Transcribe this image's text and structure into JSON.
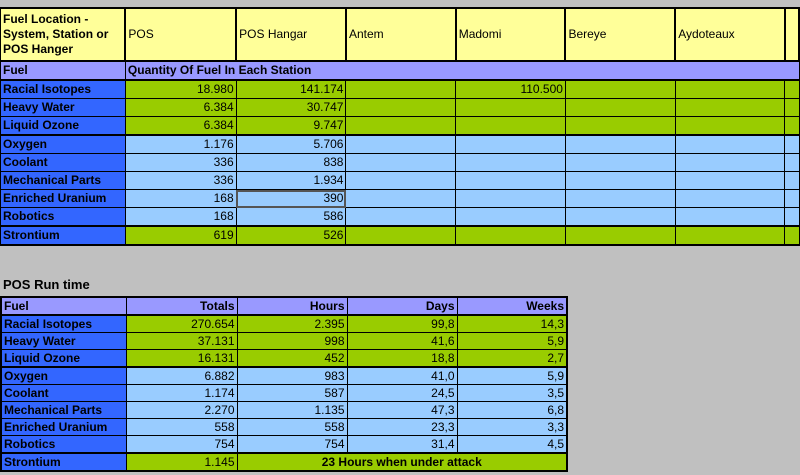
{
  "station_table": {
    "headers": [
      "Fuel Location - System, Station or POS Hanger",
      "POS",
      "POS Hangar",
      "Antem",
      "Madomi",
      "Bereye",
      "Aydoteaux",
      ""
    ],
    "subheader_label": "Fuel",
    "subheader_title": "Quantity Of Fuel In Each Station",
    "rows": [
      {
        "fuel": "Racial Isotopes",
        "group": "green",
        "values": [
          "18.980",
          "141.174",
          "",
          "110.500",
          "",
          "",
          ""
        ]
      },
      {
        "fuel": "Heavy Water",
        "group": "green",
        "values": [
          "6.384",
          "30.747",
          "",
          "",
          "",
          "",
          ""
        ]
      },
      {
        "fuel": "Liquid Ozone",
        "group": "green",
        "values": [
          "6.384",
          "9.747",
          "",
          "",
          "",
          "",
          ""
        ]
      },
      {
        "fuel": "Oxygen",
        "group": "blue",
        "values": [
          "1.176",
          "5.706",
          "",
          "",
          "",
          "",
          ""
        ]
      },
      {
        "fuel": "Coolant",
        "group": "blue",
        "values": [
          "336",
          "838",
          "",
          "",
          "",
          "",
          ""
        ]
      },
      {
        "fuel": "Mechanical Parts",
        "group": "blue",
        "values": [
          "336",
          "1.934",
          "",
          "",
          "",
          "",
          ""
        ]
      },
      {
        "fuel": "Enriched Uranium",
        "group": "blue",
        "values": [
          "168",
          "390",
          "",
          "",
          "",
          "",
          ""
        ]
      },
      {
        "fuel": "Robotics",
        "group": "blue",
        "values": [
          "168",
          "586",
          "",
          "",
          "",
          "",
          ""
        ]
      },
      {
        "fuel": "Strontium",
        "group": "green",
        "values": [
          "619",
          "526",
          "",
          "",
          "",
          "",
          ""
        ]
      }
    ],
    "selected_cell": {
      "row": "Enriched Uranium",
      "column": "POS Hangar"
    }
  },
  "runtime_table": {
    "title": "POS Run time",
    "headers": [
      "Fuel",
      "Totals",
      "Hours",
      "Days",
      "Weeks"
    ],
    "rows": [
      {
        "fuel": "Racial Isotopes",
        "group": "green",
        "values": [
          "270.654",
          "2.395",
          "99,8",
          "14,3"
        ]
      },
      {
        "fuel": "Heavy Water",
        "group": "green",
        "values": [
          "37.131",
          "998",
          "41,6",
          "5,9"
        ]
      },
      {
        "fuel": "Liquid Ozone",
        "group": "green",
        "values": [
          "16.131",
          "452",
          "18,8",
          "2,7"
        ]
      },
      {
        "fuel": "Oxygen",
        "group": "blue",
        "values": [
          "6.882",
          "983",
          "41,0",
          "5,9"
        ]
      },
      {
        "fuel": "Coolant",
        "group": "blue",
        "values": [
          "1.174",
          "587",
          "24,5",
          "3,5"
        ]
      },
      {
        "fuel": "Mechanical Parts",
        "group": "blue",
        "values": [
          "2.270",
          "1.135",
          "47,3",
          "6,8"
        ]
      },
      {
        "fuel": "Enriched Uranium",
        "group": "blue",
        "values": [
          "558",
          "558",
          "23,3",
          "3,3"
        ]
      },
      {
        "fuel": "Robotics",
        "group": "blue",
        "values": [
          "754",
          "754",
          "31,4",
          "4,5"
        ]
      }
    ],
    "strontium": {
      "fuel": "Strontium",
      "total": "1.145",
      "note": "23 Hours when under attack"
    }
  },
  "colors": {
    "header_yellow": "#ffff99",
    "header_purple": "#9999ff",
    "label_blue": "#3366ff",
    "fuel_green": "#99cc00",
    "fuel_lightblue": "#99ccff",
    "background": "#c0c0c0"
  }
}
